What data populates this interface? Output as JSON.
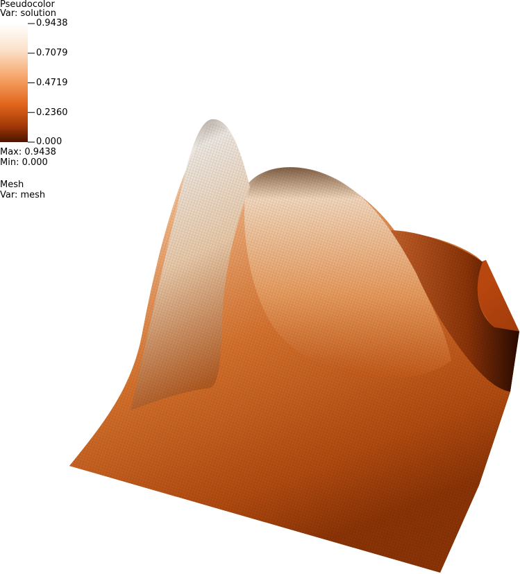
{
  "legend": {
    "pseudocolor_title": "Pseudocolor",
    "pseudocolor_var": "Var: solution",
    "ticks": [
      "0.9438",
      "0.7079",
      "0.4719",
      "0.2360",
      "0.000"
    ],
    "max_label": "Max:  0.9438",
    "min_label": "Min:  0.000",
    "mesh_title": "Mesh",
    "mesh_var": "Var: mesh"
  },
  "colormap": [
    "#ffffff",
    "#fbe0c8",
    "#f7a868",
    "#e4661c",
    "#a83a08",
    "#4a1400"
  ],
  "chart_data": {
    "type": "surface",
    "variable": "solution",
    "range": [
      0.0,
      0.9438
    ],
    "color_ticks": [
      0.9438,
      0.7079,
      0.4719,
      0.236,
      0.0
    ]
  }
}
